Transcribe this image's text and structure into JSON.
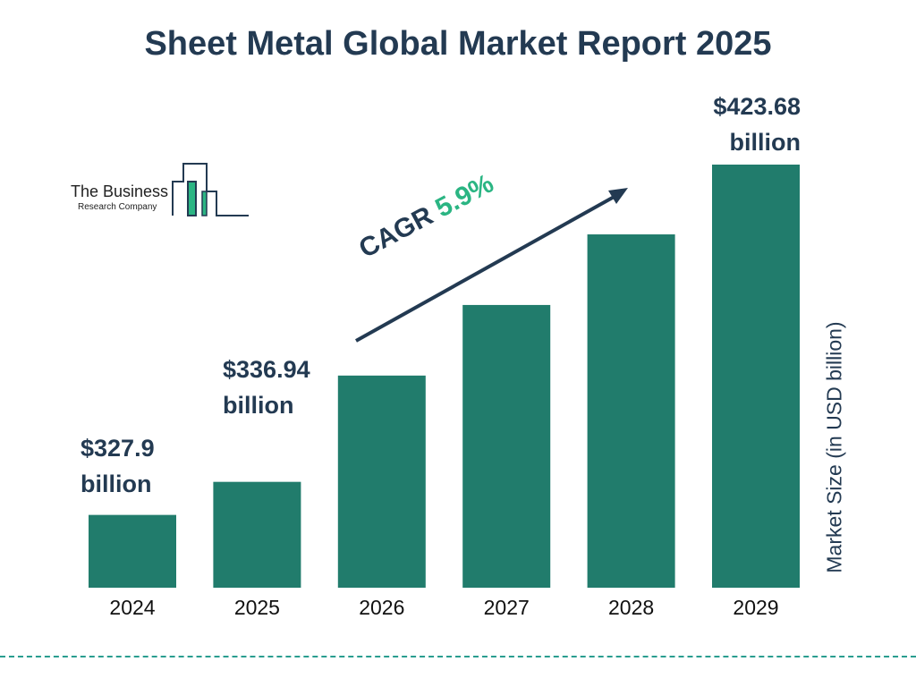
{
  "chart_data": {
    "type": "bar",
    "title": "Sheet Metal Global Market Report 2025",
    "categories": [
      "2024",
      "2025",
      "2026",
      "2027",
      "2028",
      "2029"
    ],
    "values": [
      327.9,
      336.94,
      366,
      385.3,
      404.6,
      423.68
    ],
    "data_labels": [
      "$327.9 billion",
      "$336.94 billion",
      null,
      null,
      null,
      "$423.68 billion"
    ],
    "ylabel": "Market Size (in USD billion)",
    "xlabel": "",
    "grid": false,
    "bar_color": "#217c6c",
    "annotation": {
      "prefix": "CAGR",
      "value": "5.9%",
      "value_color": "#2bb583"
    }
  },
  "logo": {
    "line1": "The Business",
    "line2": "Research Company"
  }
}
